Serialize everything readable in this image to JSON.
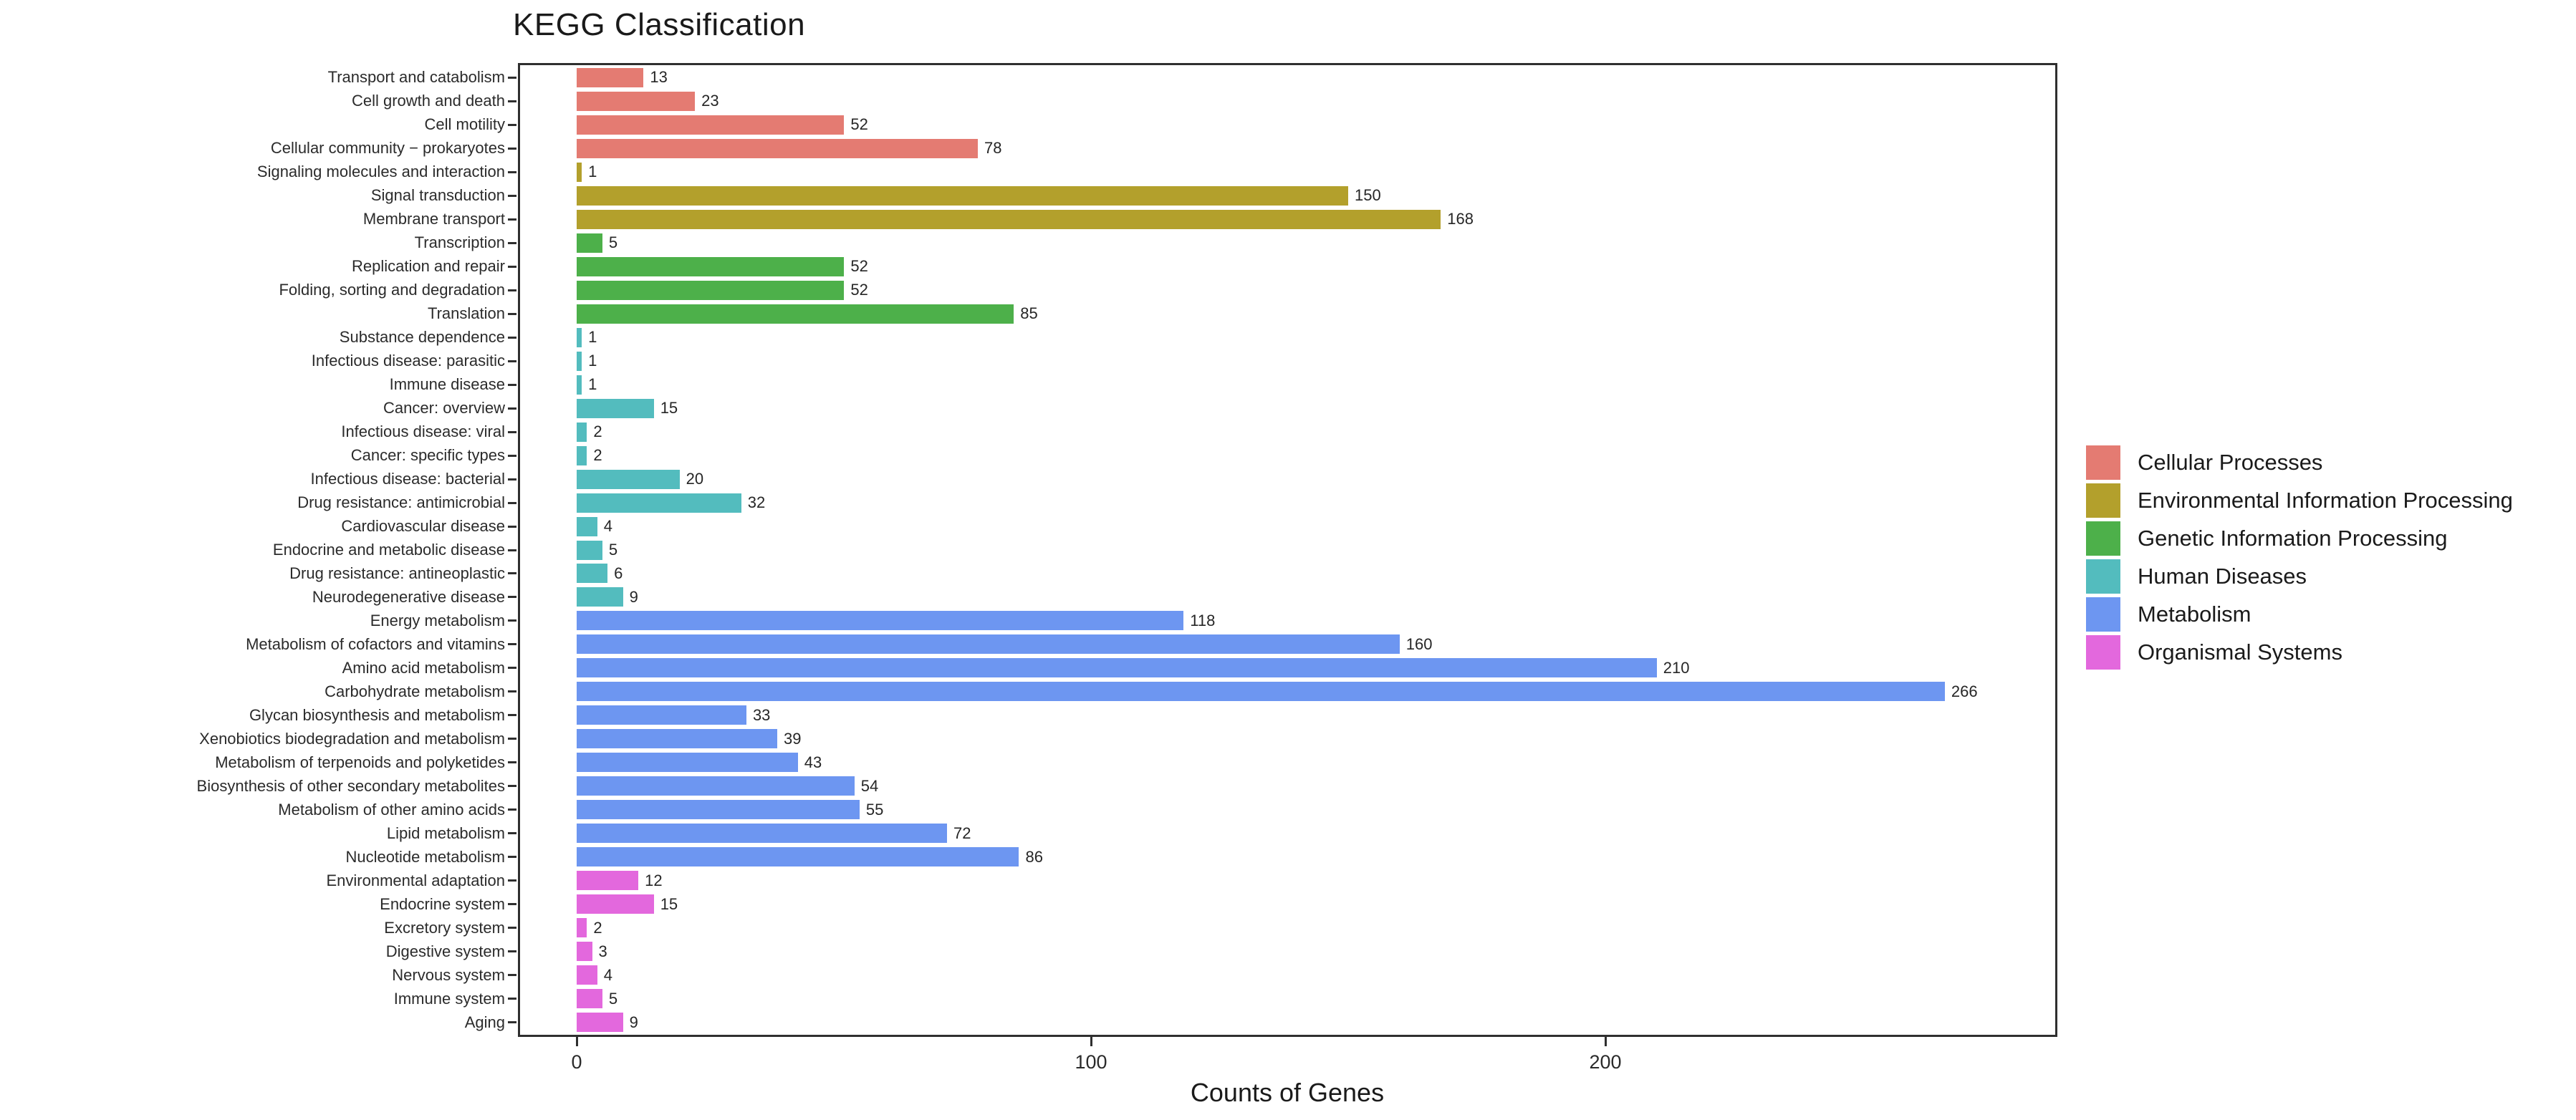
{
  "title": "KEGG Classification",
  "x_axis": {
    "label": "Counts of Genes",
    "ticks": [
      0,
      100,
      200
    ]
  },
  "legend": {
    "items": [
      {
        "label": "Cellular Processes",
        "color": "#E47B72"
      },
      {
        "label": "Environmental Information Processing",
        "color": "#B3A02C"
      },
      {
        "label": "Genetic Information Processing",
        "color": "#4DB04A"
      },
      {
        "label": "Human Diseases",
        "color": "#53BCBE"
      },
      {
        "label": "Metabolism",
        "color": "#6D96F1"
      },
      {
        "label": "Organismal Systems",
        "color": "#E368DD"
      }
    ]
  },
  "chart_data": {
    "type": "bar",
    "orientation": "horizontal",
    "title": "KEGG Classification",
    "xlabel": "Counts of Genes",
    "ylabel": "",
    "xlim": [
      0,
      287
    ],
    "x_ticks": [
      0,
      100,
      200
    ],
    "grid": false,
    "legend_position": "right",
    "bars": [
      {
        "category": "Transport and catabolism",
        "value": 13,
        "group": "Cellular Processes"
      },
      {
        "category": "Cell growth and death",
        "value": 23,
        "group": "Cellular Processes"
      },
      {
        "category": "Cell motility",
        "value": 52,
        "group": "Cellular Processes"
      },
      {
        "category": "Cellular community − prokaryotes",
        "value": 78,
        "group": "Cellular Processes"
      },
      {
        "category": "Signaling molecules and interaction",
        "value": 1,
        "group": "Environmental Information Processing"
      },
      {
        "category": "Signal transduction",
        "value": 150,
        "group": "Environmental Information Processing"
      },
      {
        "category": "Membrane transport",
        "value": 168,
        "group": "Environmental Information Processing"
      },
      {
        "category": "Transcription",
        "value": 5,
        "group": "Genetic Information Processing"
      },
      {
        "category": "Replication and repair",
        "value": 52,
        "group": "Genetic Information Processing"
      },
      {
        "category": "Folding, sorting and degradation",
        "value": 52,
        "group": "Genetic Information Processing"
      },
      {
        "category": "Translation",
        "value": 85,
        "group": "Genetic Information Processing"
      },
      {
        "category": "Substance dependence",
        "value": 1,
        "group": "Human Diseases"
      },
      {
        "category": "Infectious disease: parasitic",
        "value": 1,
        "group": "Human Diseases"
      },
      {
        "category": "Immune disease",
        "value": 1,
        "group": "Human Diseases"
      },
      {
        "category": "Cancer: overview",
        "value": 15,
        "group": "Human Diseases"
      },
      {
        "category": "Infectious disease: viral",
        "value": 2,
        "group": "Human Diseases"
      },
      {
        "category": "Cancer: specific types",
        "value": 2,
        "group": "Human Diseases"
      },
      {
        "category": "Infectious disease: bacterial",
        "value": 20,
        "group": "Human Diseases"
      },
      {
        "category": "Drug resistance: antimicrobial",
        "value": 32,
        "group": "Human Diseases"
      },
      {
        "category": "Cardiovascular disease",
        "value": 4,
        "group": "Human Diseases"
      },
      {
        "category": "Endocrine and metabolic disease",
        "value": 5,
        "group": "Human Diseases"
      },
      {
        "category": "Drug resistance: antineoplastic",
        "value": 6,
        "group": "Human Diseases"
      },
      {
        "category": "Neurodegenerative disease",
        "value": 9,
        "group": "Human Diseases"
      },
      {
        "category": "Energy metabolism",
        "value": 118,
        "group": "Metabolism"
      },
      {
        "category": "Metabolism of cofactors and vitamins",
        "value": 160,
        "group": "Metabolism"
      },
      {
        "category": "Amino acid metabolism",
        "value": 210,
        "group": "Metabolism"
      },
      {
        "category": "Carbohydrate metabolism",
        "value": 266,
        "group": "Metabolism"
      },
      {
        "category": "Glycan biosynthesis and metabolism",
        "value": 33,
        "group": "Metabolism"
      },
      {
        "category": "Xenobiotics biodegradation and metabolism",
        "value": 39,
        "group": "Metabolism"
      },
      {
        "category": "Metabolism of terpenoids and polyketides",
        "value": 43,
        "group": "Metabolism"
      },
      {
        "category": "Biosynthesis of other secondary metabolites",
        "value": 54,
        "group": "Metabolism"
      },
      {
        "category": "Metabolism of other amino acids",
        "value": 55,
        "group": "Metabolism"
      },
      {
        "category": "Lipid metabolism",
        "value": 72,
        "group": "Metabolism"
      },
      {
        "category": "Nucleotide metabolism",
        "value": 86,
        "group": "Metabolism"
      },
      {
        "category": "Environmental adaptation",
        "value": 12,
        "group": "Organismal Systems"
      },
      {
        "category": "Endocrine system",
        "value": 15,
        "group": "Organismal Systems"
      },
      {
        "category": "Excretory system",
        "value": 2,
        "group": "Organismal Systems"
      },
      {
        "category": "Digestive system",
        "value": 3,
        "group": "Organismal Systems"
      },
      {
        "category": "Nervous system",
        "value": 4,
        "group": "Organismal Systems"
      },
      {
        "category": "Immune system",
        "value": 5,
        "group": "Organismal Systems"
      },
      {
        "category": "Aging",
        "value": 9,
        "group": "Organismal Systems"
      }
    ]
  }
}
